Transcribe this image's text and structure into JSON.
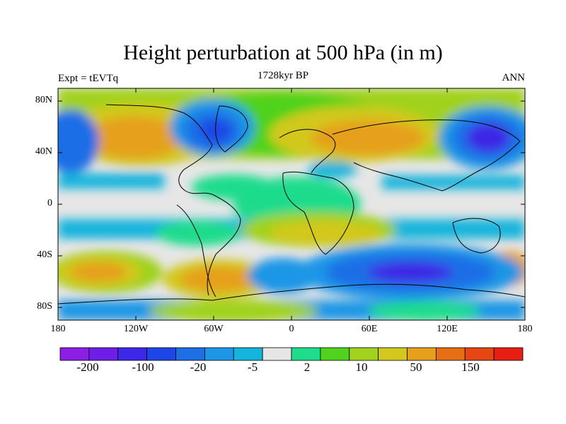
{
  "header": {
    "title": "Height perturbation at 500 hPa (in m)",
    "left": "Expt = tEVTq",
    "center": "1728kyr BP",
    "right": "ANN"
  },
  "axes": {
    "lat_labels": [
      "80N",
      "40N",
      "0",
      "40S",
      "80S"
    ],
    "lon_labels": [
      "180",
      "120W",
      "60W",
      "0",
      "60E",
      "120E",
      "180"
    ]
  },
  "colorbar": {
    "colors": [
      "#8c1ee6",
      "#6e1ee6",
      "#3c28e6",
      "#1e46e6",
      "#1e6ee6",
      "#1e96e6",
      "#14b4dc",
      "#e6e6e6",
      "#1edc8c",
      "#50d21e",
      "#a0d21e",
      "#d2c81e",
      "#e6a01e",
      "#e66e14",
      "#e64614",
      "#e61e14"
    ],
    "labels": [
      "-200",
      "-100",
      "-20",
      "-5",
      "2",
      "10",
      "50",
      "150"
    ]
  }
}
